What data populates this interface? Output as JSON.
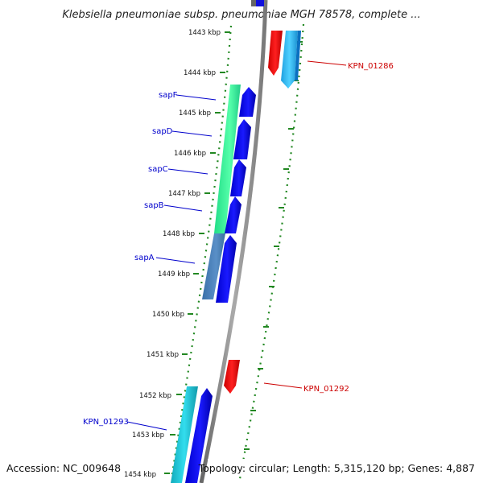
{
  "title": "Klebsiella pneumoniae subsp. pneumoniae MGH 78578, complete ...",
  "footer": {
    "accession": "Accession: NC_009648",
    "summary": "Topology: circular; Length: 5,315,120 bp; Genes: 4,887"
  },
  "ruler": {
    "ticks": [
      "1443 kbp",
      "1444 kbp",
      "1445 kbp",
      "1446 kbp",
      "1447 kbp",
      "1448 kbp",
      "1449 kbp",
      "1450 kbp",
      "1451 kbp",
      "1452 kbp",
      "1453 kbp",
      "1454 kbp"
    ]
  },
  "genes": {
    "sapF": "sapF",
    "sapD": "sapD",
    "sapC": "sapC",
    "sapB": "sapB",
    "sapA": "sapA",
    "kpn_01293": "KPN_01293",
    "kpn_01286": "KPN_01286",
    "kpn_01292": "KPN_01292"
  },
  "colors": {
    "backbone": "#808080",
    "forward_gene": "#0000ee",
    "reverse_gene": "#ee0000",
    "operon_green": "#33ee99",
    "cyan": "#22ccdd",
    "tick_green": "#228822",
    "label_blue": "#0000cc",
    "label_red": "#cc0000"
  }
}
